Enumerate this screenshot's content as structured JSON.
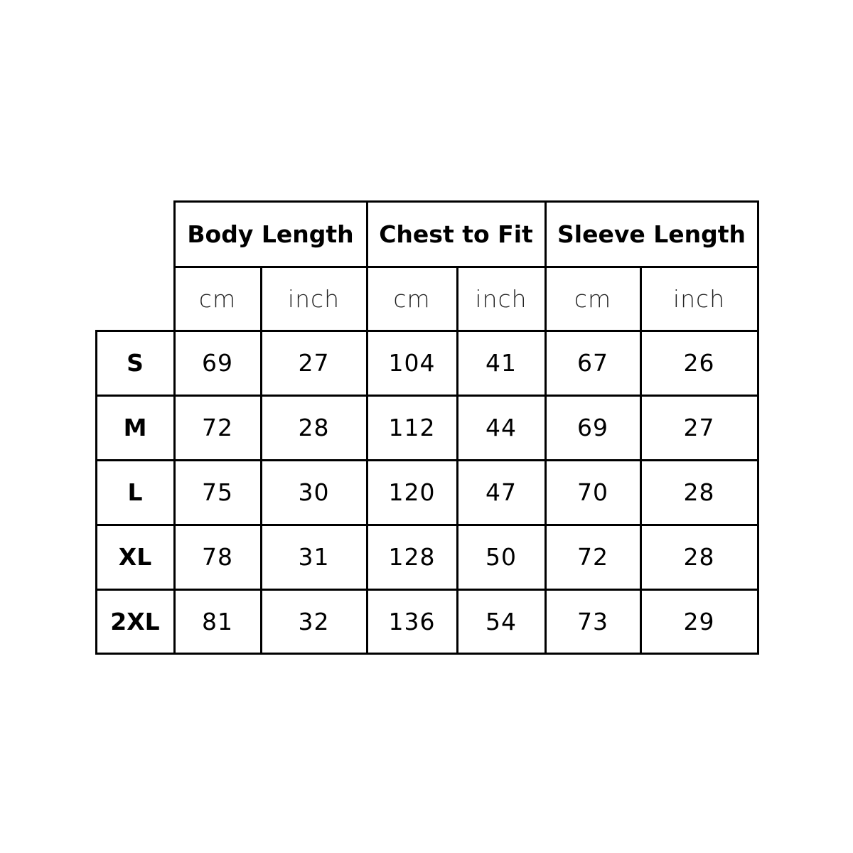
{
  "table": {
    "groups": [
      "Body Length",
      "Chest to Fit",
      "Sleeve Length"
    ],
    "units": [
      "cm",
      "inch",
      "cm",
      "inch",
      "cm",
      "inch"
    ],
    "rows": [
      {
        "size": "S",
        "values": [
          "69",
          "27",
          "104",
          "41",
          "67",
          "26"
        ]
      },
      {
        "size": "M",
        "values": [
          "72",
          "28",
          "112",
          "44",
          "69",
          "27"
        ]
      },
      {
        "size": "L",
        "values": [
          "75",
          "30",
          "120",
          "47",
          "70",
          "28"
        ]
      },
      {
        "size": "XL",
        "values": [
          "78",
          "31",
          "128",
          "50",
          "72",
          "28"
        ]
      },
      {
        "size": "2XL",
        "values": [
          "81",
          "32",
          "136",
          "54",
          "73",
          "29"
        ]
      }
    ]
  }
}
